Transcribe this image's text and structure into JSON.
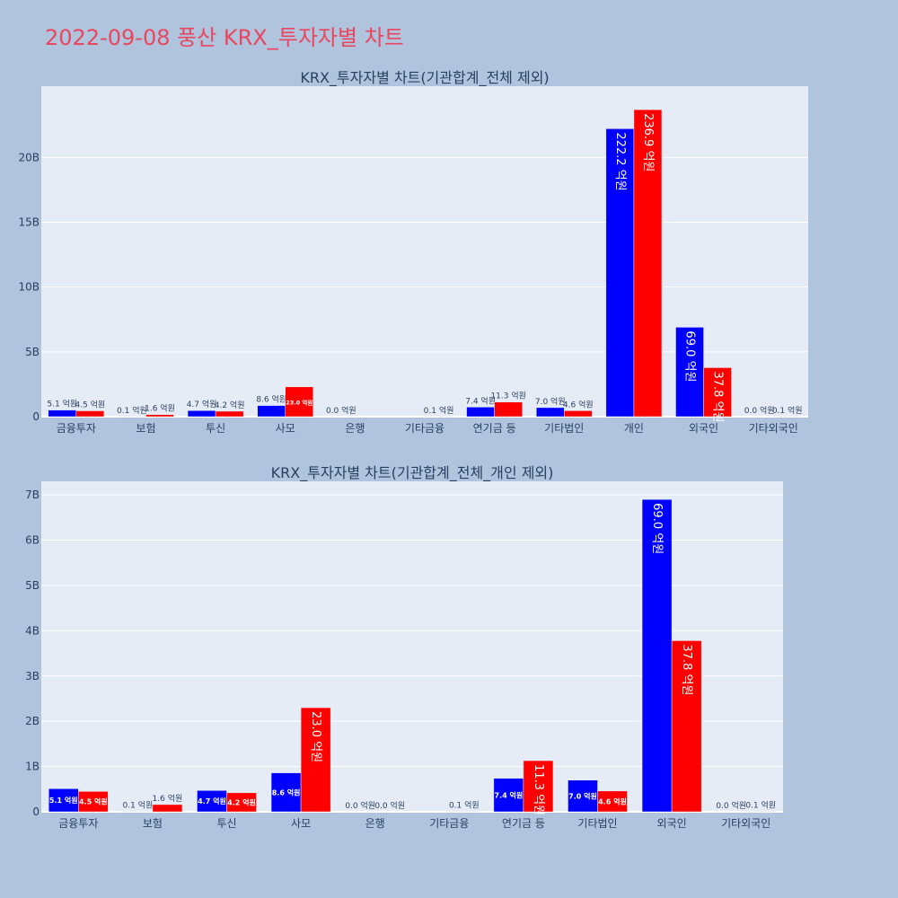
{
  "page_title": "2022-09-08 풍산 KRX_투자자별 차트",
  "colors": {
    "title": "#e8475f",
    "background": "#b0c4de",
    "plot_bg": "#e5ecf6",
    "grid": "#ffffff",
    "series_a": "#0000ff",
    "series_b": "#ff0000",
    "outside_label": "#2a3f5f",
    "inside_label": "#ffffff"
  },
  "chart_data": [
    {
      "type": "bar",
      "title": "KRX_투자자별 차트(기관합계_전체 제외)",
      "categories": [
        "금융투자",
        "보험",
        "투신",
        "사모",
        "은행",
        "기타금융",
        "연기금 등",
        "기타법인",
        "개인",
        "외국인",
        "기타외국인"
      ],
      "ylim": [
        0,
        25500000000
      ],
      "yticks": [
        0,
        5000000000,
        10000000000,
        15000000000,
        20000000000
      ],
      "yticklabels": [
        "0",
        "5B",
        "10B",
        "15B",
        "20B"
      ],
      "grid": true,
      "series": [
        {
          "values": [
            510000000,
            10000000,
            470000000,
            860000000,
            0,
            null,
            740000000,
            700000000,
            22220000000,
            6900000000,
            0
          ],
          "labels": [
            "5.1 억원",
            "0.1 억원",
            "4.7 억원",
            "8.6 억원",
            "0.0 억원",
            "",
            "7.4 억원",
            "7.0 억원",
            "222.2 억원",
            "69.0 억원",
            "0.0 억원"
          ]
        },
        {
          "values": [
            450000000,
            160000000,
            420000000,
            2300000000,
            null,
            10000000,
            1130000000,
            460000000,
            23690000000,
            3780000000,
            10000000
          ],
          "labels": [
            "4.5 억원",
            "1.6 억원",
            "4.2 억원",
            "23.0 억원",
            "",
            "0.1 억원",
            "11.3 억원",
            "4.6 억원",
            "236.9 억원",
            "37.8 억원",
            "0.1 억원"
          ]
        }
      ]
    },
    {
      "type": "bar",
      "title": "KRX_투자자별 차트(기관합계_전체_개인 제외)",
      "categories": [
        "금융투자",
        "보험",
        "투신",
        "사모",
        "은행",
        "기타금융",
        "연기금 등",
        "기타법인",
        "외국인",
        "기타외국인"
      ],
      "ylim": [
        0,
        7300000000
      ],
      "yticks": [
        0,
        1000000000,
        2000000000,
        3000000000,
        4000000000,
        5000000000,
        6000000000,
        7000000000
      ],
      "yticklabels": [
        "0",
        "1B",
        "2B",
        "3B",
        "4B",
        "5B",
        "6B",
        "7B"
      ],
      "grid": true,
      "series": [
        {
          "values": [
            510000000,
            10000000,
            470000000,
            860000000,
            0,
            null,
            740000000,
            700000000,
            6900000000,
            0
          ],
          "labels": [
            "5.1 억원",
            "0.1 억원",
            "4.7 억원",
            "8.6 억원",
            "0.0 억원",
            "",
            "7.4 억원",
            "7.0 억원",
            "69.0 억원",
            "0.0 억원"
          ]
        },
        {
          "values": [
            450000000,
            160000000,
            420000000,
            2300000000,
            0,
            10000000,
            1130000000,
            460000000,
            3780000000,
            10000000
          ],
          "labels": [
            "4.5 억원",
            "1.6 억원",
            "4.2 억원",
            "23.0 억원",
            "0.0 억원",
            "0.1 억원",
            "11.3 억원",
            "4.6 억원",
            "37.8 억원",
            "0.1 억원"
          ]
        }
      ]
    }
  ]
}
